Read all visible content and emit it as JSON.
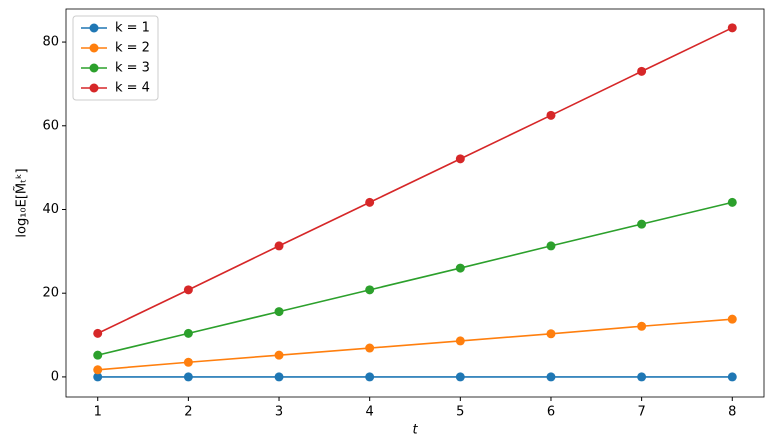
{
  "chart_data": {
    "type": "line",
    "x_label": "t",
    "y_label": "log₁₀E[M̃ₜᵏ]",
    "x": [
      1,
      2,
      3,
      4,
      5,
      6,
      7,
      8
    ],
    "series": [
      {
        "name": "k = 1",
        "color": "#1f77b4",
        "values": [
          0,
          0,
          0,
          0,
          0,
          0,
          0,
          0
        ]
      },
      {
        "name": "k = 2",
        "color": "#ff7f0e",
        "values": [
          1.7,
          3.5,
          5.2,
          6.9,
          8.6,
          10.3,
          12.1,
          13.8
        ]
      },
      {
        "name": "k = 3",
        "color": "#2ca02c",
        "values": [
          5.2,
          10.4,
          15.6,
          20.8,
          26.0,
          31.3,
          36.5,
          41.7
        ]
      },
      {
        "name": "k = 4",
        "color": "#d62728",
        "values": [
          10.4,
          20.8,
          31.3,
          41.7,
          52.1,
          62.5,
          73.0,
          83.4
        ]
      }
    ],
    "xlim": [
      0.65,
      8.35
    ],
    "ylim": [
      -4.8,
      87.9
    ],
    "xticks": [
      1,
      2,
      3,
      4,
      5,
      6,
      7,
      8
    ],
    "yticks": [
      0,
      20,
      40,
      60,
      80
    ],
    "legend": "upper-left",
    "grid": false
  }
}
